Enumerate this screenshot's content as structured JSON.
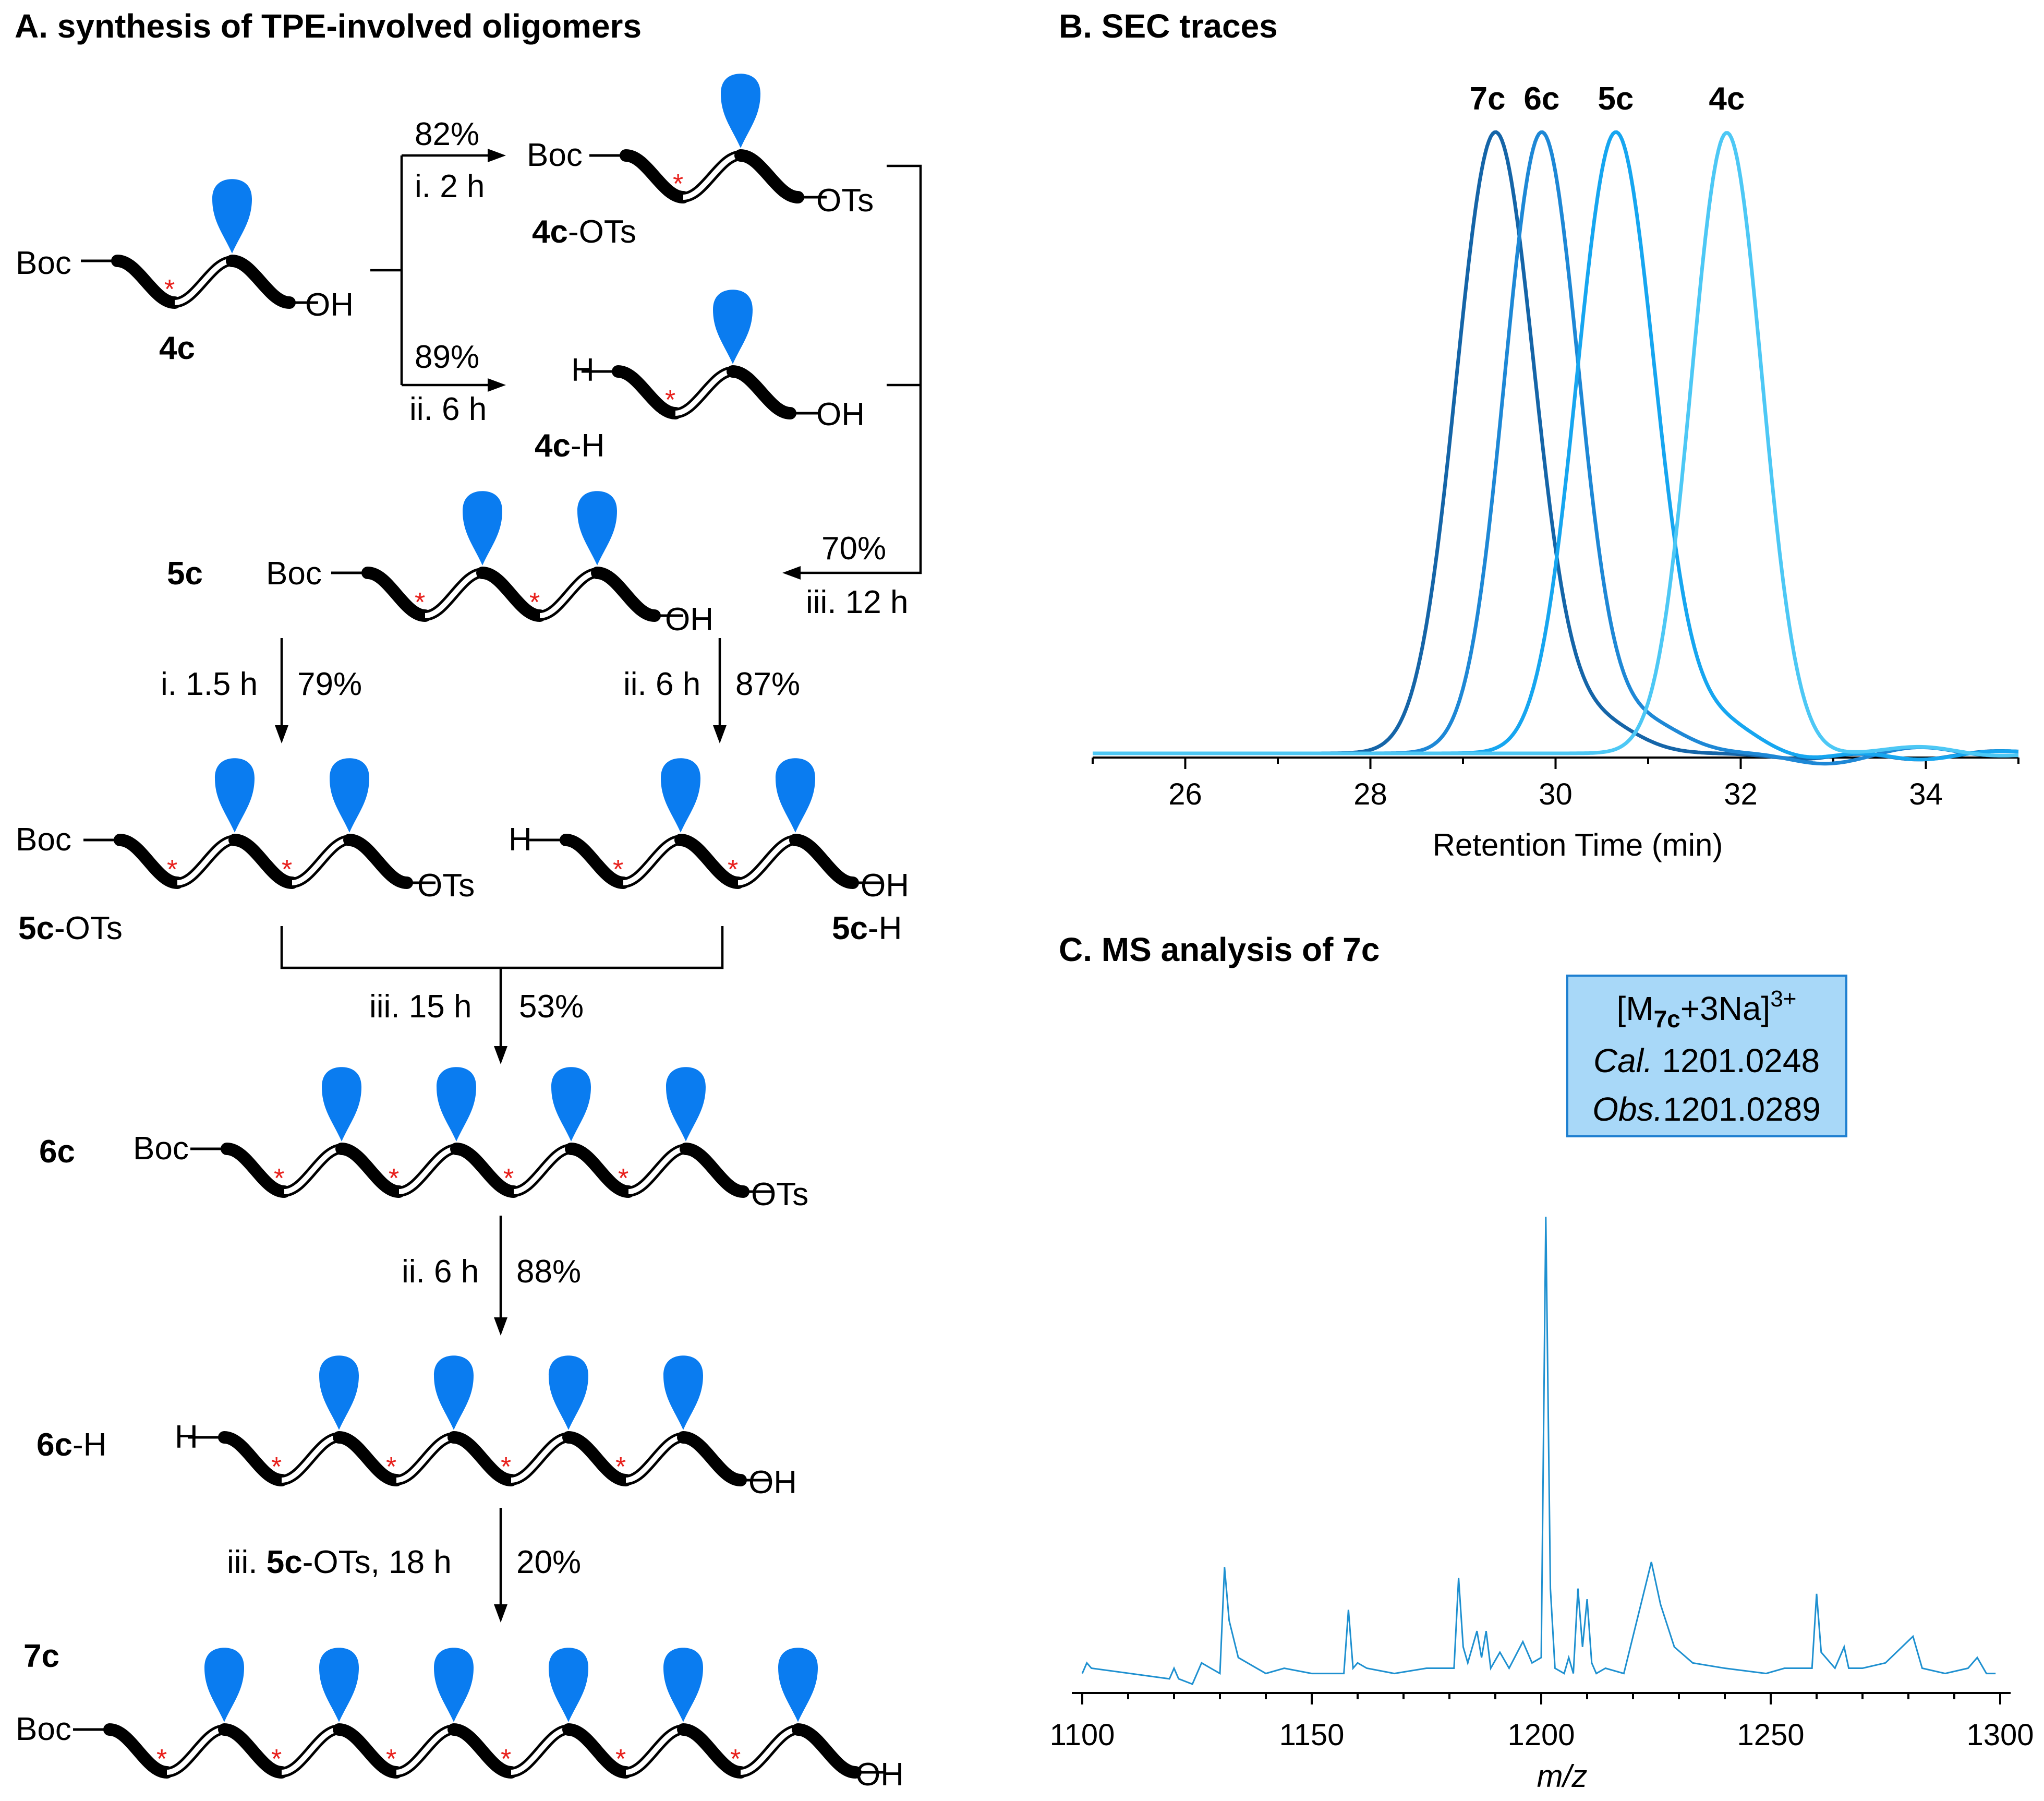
{
  "panel_a": {
    "title": "A. synthesis of TPE-involved oligomers",
    "labels": {
      "boc": "Boc",
      "h": "H",
      "oh": "OH",
      "ots": "OTs",
      "suffix_ots": "-OTs",
      "suffix_h": "-H",
      "n4c": "4c",
      "n5c": "5c",
      "n6c": "6c",
      "n7c": "7c",
      "star": "*"
    },
    "conditions": {
      "top_yield": "82%",
      "top_cond": "i. 2 h",
      "mid_yield": "89%",
      "mid_cond": "ii. 6 h",
      "couple_yield": "70%",
      "couple_cond": "iii. 12 h",
      "left_down": "i. 1.5 h",
      "left_yield": "79%",
      "right_down": "ii. 6 h",
      "right_yield": "87%",
      "merge_cond": "iii. 15 h",
      "merge_yield": "53%",
      "deprot_cond": "ii. 6 h",
      "deprot_yield": "88%",
      "final_prefix": "iii.",
      "final_reagent": "5c",
      "final_rest": "-OTs, 18 h",
      "final_yield": "20%"
    },
    "colors": {
      "tpe": "#0a7cf0",
      "star": "#e8201c"
    }
  },
  "panel_b": {
    "title": "B. SEC traces",
    "chart_data": {
      "type": "line",
      "xlabel": "Retention Time (min)",
      "ylabel": "",
      "xlim": [
        25,
        35
      ],
      "ylim": [
        -0.06,
        1.0
      ],
      "xticks": [
        26,
        28,
        30,
        32,
        34
      ],
      "series": [
        {
          "name": "7c",
          "peak": 29.35,
          "sigma": 0.42,
          "color": "#1565a8"
        },
        {
          "name": "6c",
          "peak": 29.85,
          "sigma": 0.4,
          "color": "#1e88d6"
        },
        {
          "name": "5c",
          "peak": 30.65,
          "sigma": 0.42,
          "color": "#16a6f0"
        },
        {
          "name": "4c",
          "peak": 31.85,
          "sigma": 0.38,
          "color": "#4dc8f5"
        }
      ]
    }
  },
  "panel_c": {
    "title": "C. MS analysis of 7c",
    "annotation": {
      "ion_prefix": "[M",
      "ion_sub": "7c",
      "ion_mid": "+3Na]",
      "ion_sup": "3+",
      "cal_label": "Cal.",
      "cal_value": " 1201.0248",
      "obs_label": "Obs.",
      "obs_value": "1201.0289"
    },
    "chart_data": {
      "type": "line",
      "xlabel": "m/z",
      "ylabel": "",
      "xlim": [
        1100,
        1300
      ],
      "ylim": [
        0,
        1.0
      ],
      "xticks": [
        1100,
        1150,
        1200,
        1250,
        1300
      ],
      "color": "#1e90d0",
      "points": [
        [
          1100,
          0.02
        ],
        [
          1101,
          0.04
        ],
        [
          1102,
          0.03
        ],
        [
          1119,
          0.01
        ],
        [
          1120,
          0.03
        ],
        [
          1121,
          0.01
        ],
        [
          1124,
          0.0
        ],
        [
          1126,
          0.04
        ],
        [
          1128,
          0.03
        ],
        [
          1130,
          0.02
        ],
        [
          1131,
          0.22
        ],
        [
          1132,
          0.12
        ],
        [
          1134,
          0.05
        ],
        [
          1140,
          0.02
        ],
        [
          1144,
          0.03
        ],
        [
          1150,
          0.02
        ],
        [
          1157,
          0.02
        ],
        [
          1158,
          0.14
        ],
        [
          1159,
          0.03
        ],
        [
          1160,
          0.04
        ],
        [
          1162,
          0.03
        ],
        [
          1168,
          0.02
        ],
        [
          1175,
          0.03
        ],
        [
          1181,
          0.03
        ],
        [
          1182,
          0.2
        ],
        [
          1183,
          0.07
        ],
        [
          1184,
          0.04
        ],
        [
          1186,
          0.1
        ],
        [
          1187,
          0.05
        ],
        [
          1188,
          0.1
        ],
        [
          1189,
          0.03
        ],
        [
          1191,
          0.06
        ],
        [
          1193,
          0.03
        ],
        [
          1196,
          0.08
        ],
        [
          1198,
          0.04
        ],
        [
          1200,
          0.05
        ],
        [
          1201,
          0.88
        ],
        [
          1202,
          0.18
        ],
        [
          1203,
          0.03
        ],
        [
          1205,
          0.02
        ],
        [
          1206,
          0.05
        ],
        [
          1207,
          0.02
        ],
        [
          1208,
          0.18
        ],
        [
          1209,
          0.07
        ],
        [
          1210,
          0.16
        ],
        [
          1211,
          0.04
        ],
        [
          1212,
          0.02
        ],
        [
          1214,
          0.03
        ],
        [
          1218,
          0.02
        ],
        [
          1224,
          0.23
        ],
        [
          1226,
          0.15
        ],
        [
          1229,
          0.07
        ],
        [
          1233,
          0.04
        ],
        [
          1240,
          0.03
        ],
        [
          1249,
          0.02
        ],
        [
          1253,
          0.03
        ],
        [
          1259,
          0.03
        ],
        [
          1260,
          0.17
        ],
        [
          1261,
          0.06
        ],
        [
          1264,
          0.03
        ],
        [
          1266,
          0.07
        ],
        [
          1267,
          0.03
        ],
        [
          1270,
          0.03
        ],
        [
          1275,
          0.04
        ],
        [
          1281,
          0.09
        ],
        [
          1283,
          0.03
        ],
        [
          1288,
          0.02
        ],
        [
          1293,
          0.03
        ],
        [
          1295,
          0.05
        ],
        [
          1297,
          0.02
        ],
        [
          1299,
          0.02
        ]
      ]
    }
  }
}
